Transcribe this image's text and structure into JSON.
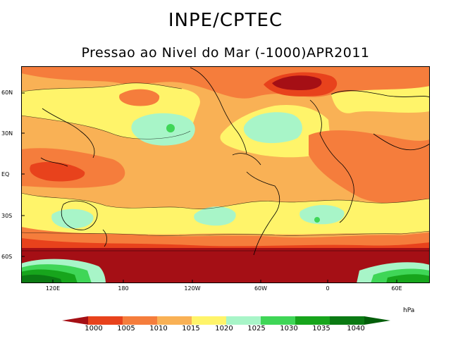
{
  "header": {
    "title": "INPE/CPTEC",
    "subtitle": "Pressao ao Nivel do Mar (-1000)APR2011"
  },
  "map": {
    "lat_labels": [
      "60N",
      "30N",
      "EQ",
      "30S",
      "60S"
    ],
    "lon_labels": [
      "120E",
      "180",
      "120W",
      "60W",
      "0",
      "60E"
    ]
  },
  "legend": {
    "unit": "hPa",
    "levels": [
      "1000",
      "1005",
      "1010",
      "1015",
      "1020",
      "1025",
      "1030",
      "1035",
      "1040"
    ],
    "colors": [
      "#a50f15",
      "#e8421c",
      "#f57d3c",
      "#f9b155",
      "#fff46a",
      "#a8f5c8",
      "#3fd657",
      "#17a51c",
      "#0b7a13",
      "#035e0a"
    ]
  }
}
